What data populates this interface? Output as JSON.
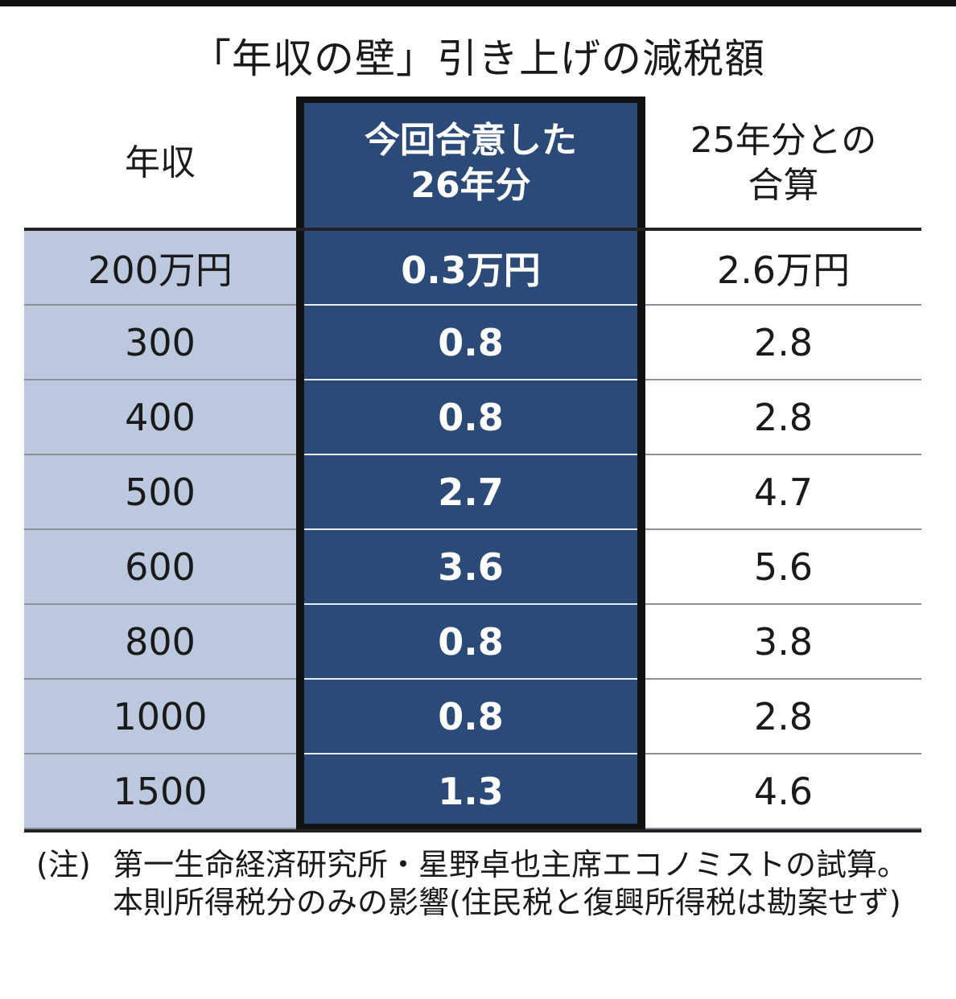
{
  "title": "「年収の壁」引き上げの減税額",
  "chart_data": {
    "type": "table",
    "title": "「年収の壁」引き上げの減税額",
    "columns": [
      "年収",
      "今回合意した\n26年分",
      "25年分との\n合算"
    ],
    "rows": [
      [
        "200万円",
        "0.3万円",
        "2.6万円"
      ],
      [
        "300",
        "0.8",
        "2.8"
      ],
      [
        "400",
        "0.8",
        "2.8"
      ],
      [
        "500",
        "2.7",
        "4.7"
      ],
      [
        "600",
        "3.6",
        "5.6"
      ],
      [
        "800",
        "0.8",
        "3.8"
      ],
      [
        "1000",
        "0.8",
        "2.8"
      ],
      [
        "1500",
        "1.3",
        "4.6"
      ]
    ],
    "colors": {
      "income_column": "#bcc8de",
      "highlight_column": "#2b4a78",
      "highlight_text": "#ffffff"
    }
  },
  "note": {
    "label": "(注)",
    "text": "第一生命経済研究所・星野卓也主席エコノミストの試算。本則所得税分のみの影響(住民税と復興所得税は勘案せず)"
  }
}
